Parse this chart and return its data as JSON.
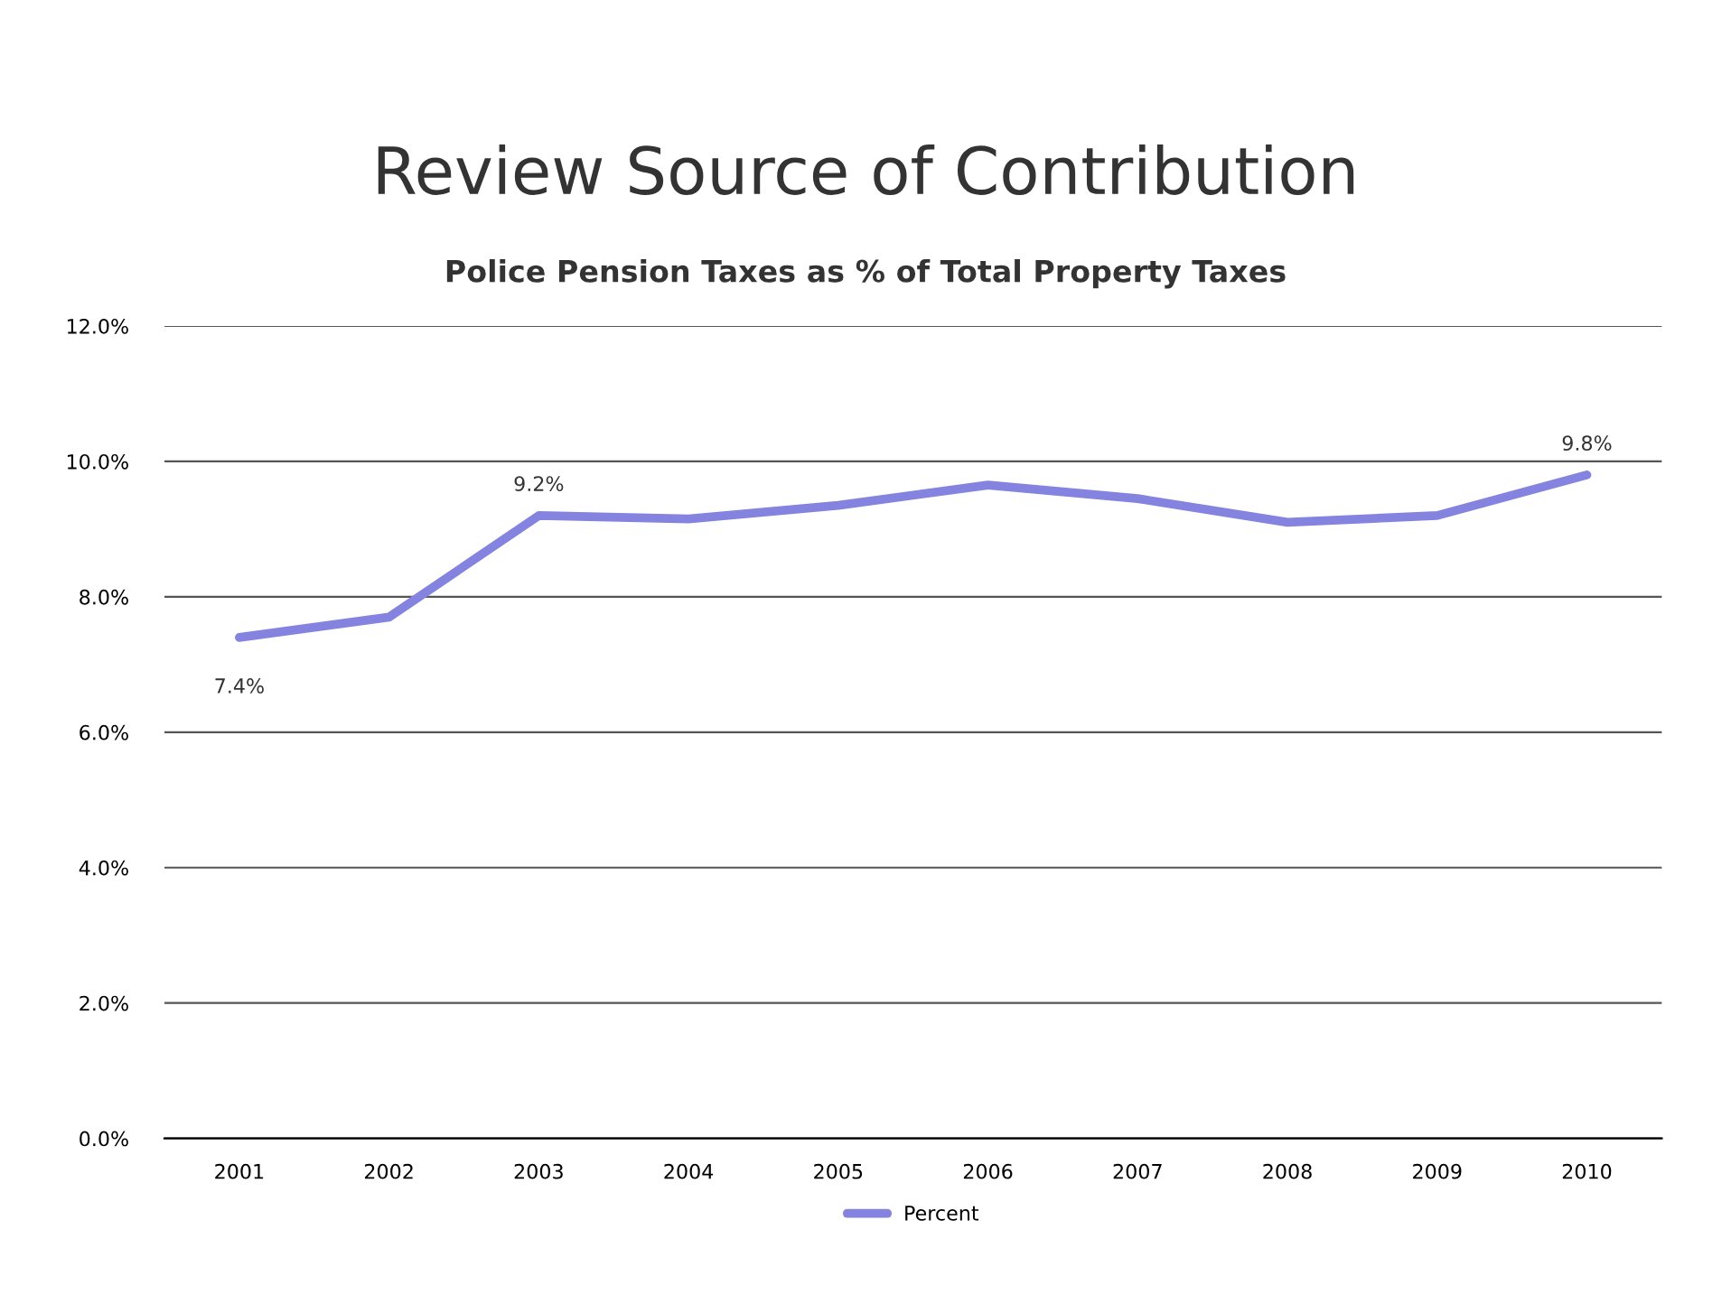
{
  "chart_data": {
    "type": "line",
    "title": "Review Source of Contribution",
    "subtitle": "Police Pension Taxes as % of Total Property Taxes",
    "categories": [
      "2001",
      "2002",
      "2003",
      "2004",
      "2005",
      "2006",
      "2007",
      "2008",
      "2009",
      "2010"
    ],
    "series": [
      {
        "name": "Percent",
        "color": "#8484e0",
        "values": [
          7.4,
          7.7,
          9.2,
          9.15,
          9.35,
          9.65,
          9.45,
          9.1,
          9.2,
          9.8
        ],
        "value_labels": [
          "7.4%",
          null,
          "9.2%",
          null,
          null,
          null,
          null,
          null,
          null,
          "9.8%"
        ]
      }
    ],
    "ylim": [
      0,
      12
    ],
    "yticks": [
      {
        "value": 0,
        "label": "0.0%"
      },
      {
        "value": 2,
        "label": "2.0%"
      },
      {
        "value": 4,
        "label": "4.0%"
      },
      {
        "value": 6,
        "label": "6.0%"
      },
      {
        "value": 8,
        "label": "8.0%"
      },
      {
        "value": 10,
        "label": "10.0%"
      },
      {
        "value": 12,
        "label": "12.0%"
      }
    ],
    "grid": "y",
    "legend": "bottom",
    "marker": "none",
    "line_style": "solid"
  }
}
